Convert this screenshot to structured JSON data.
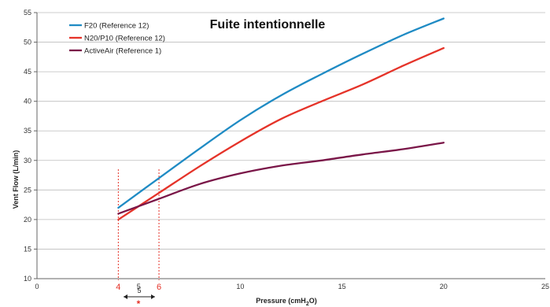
{
  "chart_data": {
    "type": "line",
    "title": "Fuite intentionnelle",
    "xlabel": "Pressure (cmH",
    "xlabel_sub": "2",
    "xlabel_end": "O)",
    "ylabel": "Vent Flow (L/min)",
    "xlim": [
      0,
      25
    ],
    "ylim": [
      10,
      55
    ],
    "xticks": [
      "0",
      "5",
      "10",
      "15",
      "20",
      "25"
    ],
    "yticks": [
      "10",
      "15",
      "20",
      "25",
      "30",
      "35",
      "40",
      "45",
      "50",
      "55"
    ],
    "grid": "horizontal",
    "legend_position": "top-left",
    "series": [
      {
        "name": "F20 (Reference 12)",
        "color": "#1f8bc4",
        "x": [
          4,
          6,
          8,
          10,
          12,
          14,
          16,
          18,
          20
        ],
        "y": [
          22,
          27,
          32,
          36.8,
          41,
          44.6,
          48,
          51.2,
          54
        ]
      },
      {
        "name": "N20/P10 (Reference 12)",
        "color": "#e53329",
        "x": [
          4,
          6,
          8,
          10,
          12,
          14,
          16,
          18,
          20
        ],
        "y": [
          20,
          24.5,
          29,
          33.2,
          37,
          40,
          42.8,
          46,
          49
        ]
      },
      {
        "name": "ActiveAir (Reference 1)",
        "color": "#7a1648",
        "x": [
          4,
          6,
          8,
          10,
          12,
          14,
          16,
          18,
          20
        ],
        "y": [
          21,
          23.5,
          26,
          27.8,
          29.1,
          30,
          31,
          31.9,
          33
        ]
      }
    ],
    "markers": [
      {
        "x": 4,
        "label": "4",
        "color": "#e53329"
      },
      {
        "x": 6,
        "label": "6",
        "color": "#e53329"
      }
    ],
    "gap_label": "5"
  }
}
